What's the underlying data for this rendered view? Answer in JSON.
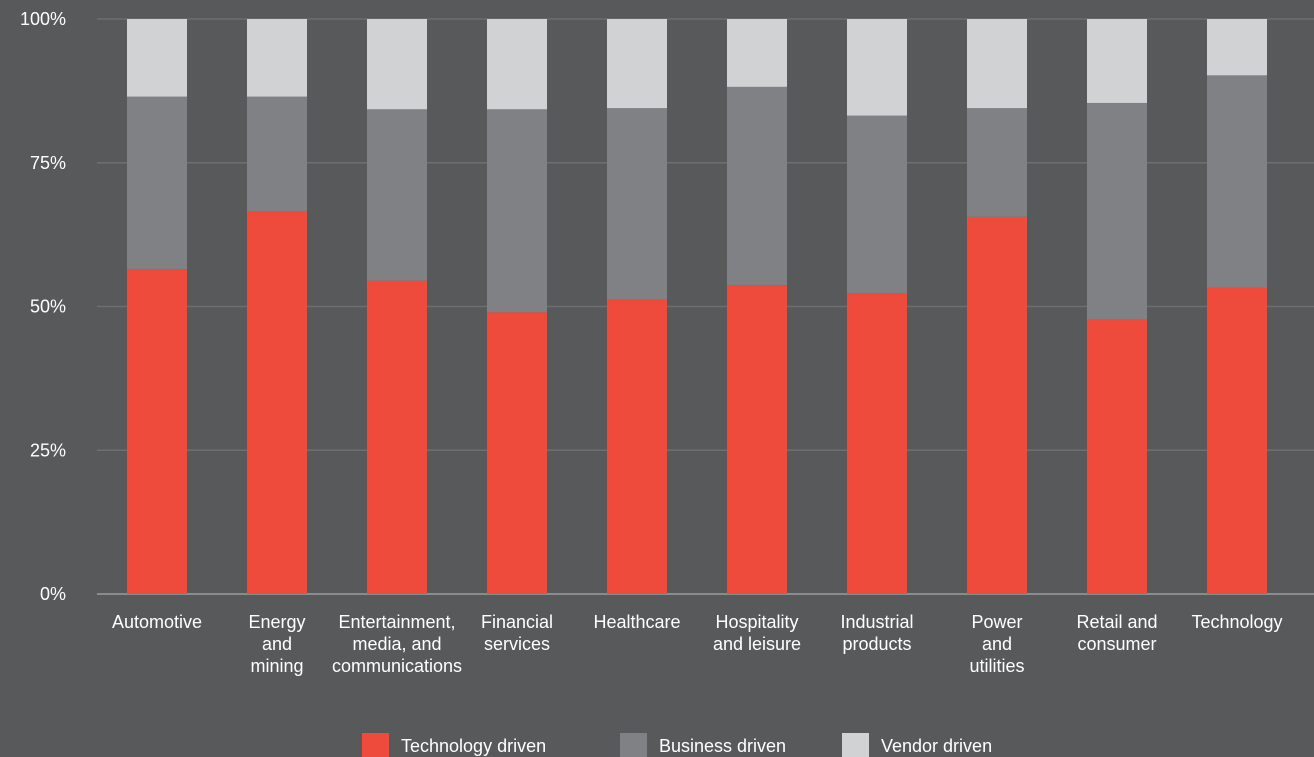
{
  "chart_data": {
    "type": "bar",
    "stacked": true,
    "categories": [
      [
        "Automotive"
      ],
      [
        "Energy",
        "and",
        "mining"
      ],
      [
        "Entertainment,",
        "media, and",
        "communications"
      ],
      [
        "Financial",
        "services"
      ],
      [
        "Healthcare"
      ],
      [
        "Hospitality",
        "and leisure"
      ],
      [
        "Industrial",
        "products"
      ],
      [
        "Power",
        "and",
        "utilities"
      ],
      [
        "Retail and",
        "consumer"
      ],
      [
        "Technology"
      ]
    ],
    "series": [
      {
        "name": "Technology driven",
        "color": "#ef4b3c",
        "values": [
          56.5,
          66.6,
          54.5,
          49.0,
          51.3,
          53.7,
          52.3,
          65.6,
          47.7,
          53.3
        ]
      },
      {
        "name": "Business driven",
        "color": "#808184",
        "values": [
          30.0,
          19.9,
          29.8,
          35.3,
          33.2,
          34.5,
          30.9,
          18.9,
          37.7,
          36.9
        ]
      },
      {
        "name": "Vendor driven",
        "color": "#d1d2d4",
        "values": [
          13.5,
          13.5,
          15.7,
          15.7,
          15.5,
          11.8,
          16.8,
          15.5,
          14.6,
          9.8
        ]
      }
    ],
    "yticks": [
      "0%",
      "25%",
      "50%",
      "75%",
      "100%"
    ],
    "ylim": [
      0,
      100
    ],
    "grid": true,
    "legend_position": "bottom-center"
  }
}
